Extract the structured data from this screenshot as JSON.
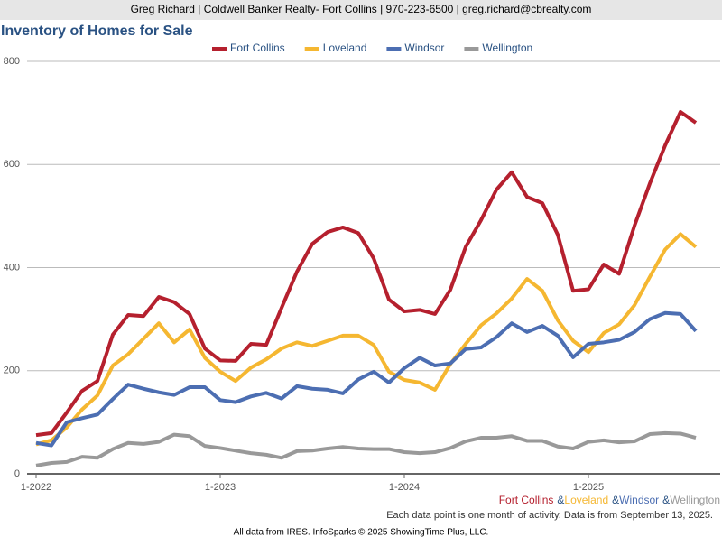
{
  "header": "Greg Richard | Coldwell Banker Realty- Fort Collins | 970-223-6500 | greg.richard@cbrealty.com",
  "chart_data": {
    "type": "line",
    "title": "Inventory of Homes for Sale",
    "categories": [
      "1-2022",
      null,
      null,
      null,
      null,
      null,
      null,
      null,
      null,
      null,
      null,
      null,
      "1-2023",
      null,
      null,
      null,
      null,
      null,
      null,
      null,
      null,
      null,
      null,
      null,
      "1-2024",
      null,
      null,
      null,
      null,
      null,
      null,
      null,
      null,
      null,
      null,
      null,
      "1-2025",
      null,
      null,
      null,
      null,
      null,
      null,
      null
    ],
    "series": [
      {
        "name": "Fort Collins",
        "color": "#b5202e",
        "values": [
          75,
          79,
          119,
          161,
          180,
          270,
          308,
          306,
          343,
          333,
          310,
          243,
          220,
          219,
          252,
          250,
          322,
          392,
          446,
          469,
          478,
          467,
          418,
          338,
          315,
          318,
          310,
          357,
          440,
          492,
          551,
          585,
          537,
          525,
          464,
          355,
          358,
          406,
          388,
          481,
          563,
          637,
          702,
          681
        ]
      },
      {
        "name": "Loveland",
        "color": "#f5b731",
        "values": [
          57,
          65,
          90,
          125,
          152,
          210,
          232,
          262,
          292,
          255,
          280,
          225,
          198,
          180,
          206,
          222,
          243,
          255,
          248,
          258,
          268,
          268,
          250,
          198,
          182,
          177,
          163,
          213,
          252,
          288,
          311,
          340,
          378,
          355,
          298,
          258,
          236,
          273,
          290,
          327,
          382,
          435,
          465,
          440
        ]
      },
      {
        "name": "Windsor",
        "color": "#4c6eb2",
        "values": [
          60,
          55,
          100,
          108,
          115,
          145,
          173,
          165,
          158,
          153,
          168,
          168,
          143,
          139,
          150,
          157,
          146,
          170,
          165,
          163,
          156,
          183,
          198,
          177,
          205,
          225,
          210,
          214,
          242,
          245,
          265,
          292,
          275,
          287,
          268,
          226,
          252,
          255,
          260,
          275,
          300,
          312,
          310,
          277
        ]
      },
      {
        "name": "Wellington",
        "color": "#999999",
        "values": [
          16,
          21,
          23,
          33,
          31,
          48,
          60,
          58,
          62,
          76,
          73,
          54,
          50,
          45,
          40,
          37,
          31,
          44,
          45,
          49,
          52,
          49,
          48,
          48,
          42,
          40,
          42,
          50,
          63,
          70,
          70,
          73,
          64,
          64,
          53,
          49,
          62,
          65,
          61,
          63,
          77,
          79,
          78,
          70
        ]
      }
    ],
    "ylim": [
      0,
      800
    ],
    "yticks": [
      0,
      200,
      400,
      600,
      800
    ],
    "grid": true,
    "legend": "top",
    "legend_joiner": "&",
    "note": "Each data point is one month of activity. Data is from September 13, 2025."
  },
  "footer": "All data from IRES. InfoSparks © 2025 ShowingTime Plus, LLC."
}
